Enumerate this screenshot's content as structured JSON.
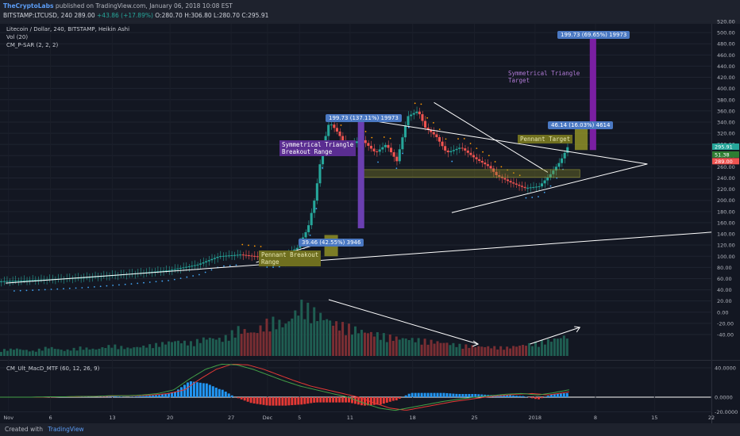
{
  "header": {
    "publisher": "TheCryptoLabs",
    "published_text": "published on TradingView.com, January 06, 2018 10:08 EST",
    "symbol": "BITSTAMP:LTCUSD, 240",
    "price": "289.00",
    "change": "+43.86 (+17.89%)",
    "open": "O:280.70",
    "high": "H:306.80",
    "low": "L:280.70",
    "close": "C:295.91"
  },
  "legend": {
    "title": "Litecoin / Dollar, 240, BITSTAMP, Heikin Ashi",
    "vol": "Vol (20)",
    "psar": "CM_P-SAR (2, 2, 2)",
    "macd": "CM_Ult_MacD_MTF (60, 12, 26, 9)"
  },
  "annotations": {
    "tag_top": "199.73 (69.65%) 19973",
    "tag_mid": "199.73 (137.11%) 19973",
    "tag_pennant": "46.14 (16.03%) 4614",
    "tag_low": "39.46 (42.55%) 3946",
    "note_triangle_target": "Symmetrical Triangle\nTarget",
    "note_triangle_breakout": "Symmetrical Triangle\nBreakout Range",
    "note_pennant_target": "Pennant Target",
    "note_pennant_breakout": "Pennant Breakout\nRange"
  },
  "footer": {
    "created_with": "Created with",
    "brand": "TradingView"
  },
  "colors": {
    "bg": "#131722",
    "up": "#26a69a",
    "down": "#ef5350",
    "purple": "#6a1b9a",
    "olive": "#8c8c28",
    "trend": "#ffffff",
    "label": "#4a78c2"
  },
  "chart_data": {
    "type": "line",
    "title": "Litecoin / Dollar, 240, BITSTAMP, Heikin Ashi",
    "price_axis": {
      "ticks": [
        -40,
        -20,
        0,
        20,
        40,
        60,
        80,
        100,
        120,
        140,
        160,
        180,
        200,
        220,
        240,
        260,
        280,
        300,
        320,
        340,
        360,
        380,
        400,
        420,
        440,
        460,
        480,
        500,
        520
      ],
      "price_labels": [
        "289.00",
        "295.91",
        "51.38"
      ]
    },
    "macd_axis": {
      "ticks": [
        40,
        0,
        -20
      ],
      "tick_labels": [
        "40.0000",
        "0.0000",
        "-20.0000"
      ]
    },
    "x_ticks": [
      "Nov",
      "6",
      "13",
      "20",
      "27",
      "Dec",
      "5",
      "11",
      "18",
      "25",
      "2018",
      "8",
      "15",
      "22"
    ],
    "price_series": {
      "name": "LTCUSD",
      "x": [
        0,
        0.06,
        0.12,
        0.18,
        0.24,
        0.28,
        0.31,
        0.34,
        0.36,
        0.38,
        0.4,
        0.42,
        0.435,
        0.445,
        0.455,
        0.465,
        0.475,
        0.49,
        0.51,
        0.53,
        0.545,
        0.56,
        0.575,
        0.59,
        0.6,
        0.615,
        0.63,
        0.65,
        0.67,
        0.69,
        0.7,
        0.72,
        0.74,
        0.76,
        0.775,
        0.79,
        0.8
      ],
      "values": [
        55,
        58,
        62,
        68,
        75,
        85,
        100,
        103,
        100,
        98,
        100,
        115,
        150,
        205,
        290,
        340,
        325,
        295,
        310,
        285,
        300,
        270,
        350,
        360,
        330,
        315,
        285,
        295,
        275,
        260,
        245,
        232,
        222,
        225,
        245,
        270,
        295
      ]
    },
    "volume_series": {
      "name": "Vol (20)",
      "x_range": [
        0,
        0.8
      ],
      "values": [
        10,
        12,
        8,
        15,
        9,
        14,
        11,
        18,
        13,
        16,
        20,
        25,
        22,
        30,
        28,
        45,
        38,
        60,
        52,
        85,
        70,
        55,
        48,
        40,
        35,
        30,
        28,
        25,
        22,
        18,
        16,
        15,
        14,
        18,
        22,
        28,
        35
      ]
    },
    "macd_series": {
      "name": "CM_Ult_MacD_MTF (60, 12, 26, 9)",
      "x_range": [
        0,
        0.8
      ],
      "macd": [
        0,
        0,
        0,
        0.5,
        0.5,
        1,
        1,
        2,
        2,
        3,
        5,
        10,
        25,
        38,
        45,
        44,
        38,
        30,
        22,
        15,
        10,
        5,
        0,
        -8,
        -15,
        -18,
        -14,
        -10,
        -6,
        -3,
        0,
        2,
        4,
        5,
        3,
        6,
        10
      ]
    }
  }
}
